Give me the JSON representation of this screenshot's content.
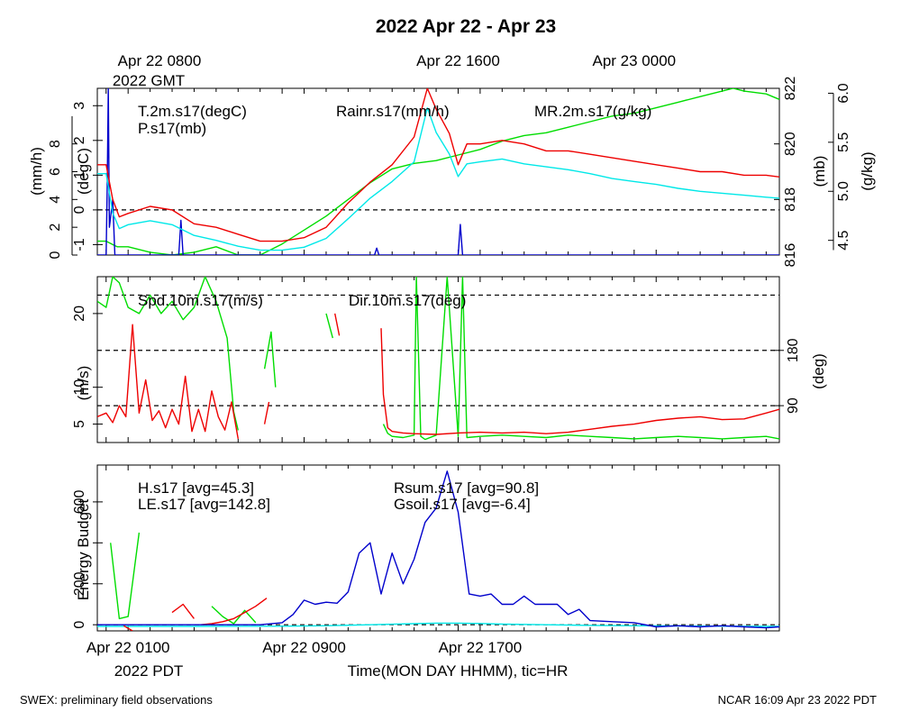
{
  "title": "2022 Apr 22 - Apr 23",
  "top_axis": {
    "ticks": [
      "Apr 22 0800",
      "Apr 22 1600",
      "Apr 23 0000"
    ],
    "year_label": "2022 GMT"
  },
  "bottom_axis": {
    "ticks": [
      "Apr 22 0100",
      "Apr 22 0900",
      "Apr 22 1700"
    ],
    "year_label": "2022 PDT",
    "label": "Time(MON DAY HHMM), tic=HR"
  },
  "footer": {
    "left": "SWEX: preliminary field observations",
    "right": "NCAR 16:09 Apr 23 2022 PDT"
  },
  "colors": {
    "red": "#ee0000",
    "green": "#00dd00",
    "blue": "#0000cc",
    "cyan": "#00e8e8"
  },
  "chart_data": [
    {
      "type": "line",
      "x_unit": "hours since Apr 22 0000 PDT",
      "xlim": [
        -0.4,
        30.6
      ],
      "left_axes": [
        {
          "label": "(degC)",
          "ticks": [
            -1,
            0,
            1,
            2,
            3
          ],
          "ylim": [
            -1.3,
            3.5
          ]
        },
        {
          "label": "(mm/h)",
          "ticks": [
            0,
            2,
            4,
            6,
            8
          ],
          "ylim": [
            0,
            12
          ]
        }
      ],
      "right_axes": [
        {
          "label": "(mb)",
          "ticks": [
            816,
            818,
            820,
            822
          ],
          "ylim": [
            816,
            822
          ]
        },
        {
          "label": "(g/kg)",
          "ticks": [
            4.5,
            5.0,
            5.5,
            6.0
          ],
          "ylim": [
            4.35,
            6.05
          ]
        }
      ],
      "reference_lines": [
        0
      ],
      "series": [
        {
          "name": "T.2m.s17(degC)",
          "color": "red",
          "axis": "degC",
          "x": [
            -0.4,
            0,
            0.3,
            0.6,
            1,
            2,
            3,
            4,
            5,
            6,
            7,
            8,
            9,
            10,
            11,
            12,
            13,
            14,
            14.6,
            15,
            15.6,
            16,
            16.4,
            17,
            18,
            19,
            20,
            21,
            22,
            23,
            24,
            25,
            26,
            27,
            28,
            29,
            30,
            30.6
          ],
          "y": [
            1.3,
            1.3,
            0.3,
            -0.2,
            -0.1,
            0.1,
            0.0,
            -0.4,
            -0.5,
            -0.7,
            -0.9,
            -0.9,
            -0.8,
            -0.5,
            0.2,
            0.8,
            1.3,
            2.1,
            3.5,
            2.9,
            2.2,
            1.3,
            1.9,
            1.9,
            2.0,
            1.9,
            1.7,
            1.7,
            1.6,
            1.5,
            1.4,
            1.3,
            1.2,
            1.1,
            1.1,
            1.0,
            1.0,
            0.95
          ]
        },
        {
          "name": "MR.2m.s17(g/kg)",
          "color": "cyan",
          "axis": "g/kg",
          "x": [
            -0.4,
            0,
            0.3,
            0.6,
            1,
            2,
            3,
            4,
            5,
            6,
            7,
            8,
            9,
            10,
            11,
            12,
            13,
            14,
            14.6,
            15,
            15.6,
            16,
            16.4,
            17,
            18,
            19,
            20,
            21,
            22,
            23,
            24,
            25,
            26,
            27,
            28,
            29,
            30,
            30.6
          ],
          "y": [
            5.18,
            5.18,
            4.78,
            4.62,
            4.66,
            4.7,
            4.66,
            4.55,
            4.5,
            4.44,
            4.4,
            4.4,
            4.43,
            4.52,
            4.72,
            4.93,
            5.1,
            5.3,
            5.85,
            5.6,
            5.38,
            5.15,
            5.28,
            5.3,
            5.33,
            5.28,
            5.25,
            5.22,
            5.18,
            5.13,
            5.1,
            5.07,
            5.03,
            5.0,
            4.98,
            4.96,
            4.94,
            4.93
          ]
        },
        {
          "name": "P.s17(mb)",
          "color": "green",
          "axis": "mb",
          "x": [
            -0.4,
            0,
            0.5,
            1,
            2,
            3,
            4,
            5,
            6,
            7,
            8,
            9,
            10,
            11,
            12,
            13,
            14,
            15,
            16,
            17,
            18,
            19,
            20,
            21,
            22,
            23,
            24,
            25,
            26,
            27,
            28,
            28.5,
            29,
            30,
            30.6
          ],
          "y": [
            816.5,
            816.5,
            816.3,
            816.3,
            816.1,
            816.0,
            816.1,
            816.3,
            816.0,
            815.9,
            816.4,
            816.9,
            817.4,
            818.0,
            818.6,
            819.1,
            819.3,
            819.4,
            819.6,
            819.8,
            820.1,
            820.3,
            820.4,
            820.6,
            820.8,
            821.0,
            821.1,
            821.3,
            821.5,
            821.7,
            821.9,
            822.0,
            821.9,
            821.8,
            821.6
          ]
        },
        {
          "name": "Rainr.s17(mm/h)",
          "color": "blue",
          "axis": "mm/h",
          "x": [
            -0.4,
            0,
            0.05,
            0.1,
            0.15,
            0.3,
            0.4,
            0.5,
            0.6,
            3.3,
            3.4,
            3.5,
            12.2,
            12.3,
            12.4,
            16.0,
            16.1,
            16.2,
            30.6
          ],
          "y": [
            0,
            0,
            5,
            12,
            2,
            4,
            0,
            0,
            0,
            0,
            2.5,
            0,
            0,
            0.5,
            0,
            0,
            2.2,
            0,
            0
          ]
        }
      ]
    },
    {
      "type": "line",
      "x_unit": "hours since Apr 22 0000 PDT",
      "xlim": [
        -0.4,
        30.6
      ],
      "left_axis": {
        "label": "(m/s)",
        "ticks": [
          5,
          10,
          20
        ],
        "ylim": [
          2.5,
          25
        ]
      },
      "right_axis": {
        "label": "(deg)",
        "ticks": [
          90,
          180
        ],
        "ylim": [
          30,
          300
        ]
      },
      "reference_lines_deg": [
        90,
        180,
        270
      ],
      "series": [
        {
          "name": "Spd.10m.s17(m/s)",
          "color": "red",
          "axis": "m/s",
          "segments": [
            {
              "x": [
                -0.4,
                0,
                0.3,
                0.6,
                0.9,
                1.2,
                1.5,
                1.8,
                2.1,
                2.4,
                2.7,
                3.0,
                3.3,
                3.6,
                3.9,
                4.2,
                4.5,
                4.8,
                5.1,
                5.4,
                5.7,
                6.0
              ],
              "y": [
                6,
                6.5,
                5.2,
                7.5,
                6.0,
                18.5,
                6.5,
                11,
                5.5,
                6.8,
                4.5,
                7,
                5,
                11.5,
                4,
                7,
                4,
                9.5,
                6,
                4.2,
                8,
                3
              ]
            },
            {
              "x": [
                7.2,
                7.4
              ],
              "y": [
                5,
                8
              ]
            },
            {
              "x": [
                10.4,
                10.6
              ],
              "y": [
                20,
                17
              ]
            },
            {
              "x": [
                12.5,
                12.6,
                12.8,
                13.0,
                13.5,
                14,
                15,
                16,
                17,
                18,
                19,
                20,
                21,
                22,
                23,
                24,
                25,
                26,
                27,
                28,
                29,
                30,
                30.6
              ],
              "y": [
                18,
                9,
                4.5,
                4.0,
                3.8,
                3.7,
                3.6,
                3.8,
                3.9,
                3.8,
                3.9,
                3.7,
                3.9,
                4.3,
                4.7,
                5.0,
                5.5,
                5.8,
                6.0,
                5.6,
                5.7,
                6.5,
                7.0
              ]
            }
          ]
        },
        {
          "name": "Dir.10m.s17(deg)",
          "color": "green",
          "axis": "deg",
          "segments": [
            {
              "x": [
                -0.4,
                0,
                0.3,
                0.6,
                1,
                1.5,
                2,
                2.5,
                3,
                3.5,
                4,
                4.5,
                5,
                5.5,
                5.8,
                6.0
              ],
              "y": [
                260,
                250,
                300,
                290,
                250,
                240,
                270,
                240,
                260,
                230,
                250,
                300,
                260,
                200,
                80,
                50
              ]
            },
            {
              "x": [
                7.2,
                7.5,
                7.7
              ],
              "y": [
                150,
                210,
                120
              ]
            },
            {
              "x": [
                10.0,
                10.3
              ],
              "y": [
                240,
                200
              ]
            },
            {
              "x": [
                12.6,
                12.8,
                13,
                13.5,
                14,
                14.1,
                14.3,
                14.5,
                15,
                15.5,
                16,
                16.2,
                16.4,
                17,
                18,
                19,
                20,
                21,
                22,
                23,
                24,
                25,
                26,
                27,
                28,
                29,
                30,
                30.6
              ],
              "y": [
                60,
                45,
                40,
                38,
                42,
                300,
                40,
                35,
                42,
                300,
                40,
                300,
                38,
                40,
                42,
                40,
                38,
                42,
                40,
                38,
                36,
                38,
                40,
                38,
                36,
                38,
                40,
                36
              ]
            }
          ]
        }
      ]
    },
    {
      "type": "line",
      "x_unit": "hours since Apr 22 0000 PDT",
      "xlim": [
        -0.4,
        30.6
      ],
      "y_axis": {
        "label": "Energy Budget",
        "ticks": [
          0,
          200,
          600
        ],
        "ylim": [
          -30,
          780
        ]
      },
      "reference_lines": [
        0
      ],
      "series": [
        {
          "name": "H.s17 [avg=45.3]",
          "color": "red",
          "segments": [
            {
              "x": [
                0.8,
                1.2
              ],
              "y": [
                -5,
                -30
              ]
            },
            {
              "x": [
                3,
                3.5,
                4
              ],
              "y": [
                60,
                100,
                30
              ]
            },
            {
              "x": [
                4.3,
                4.8,
                5.3,
                5.8,
                6.3,
                6.8,
                7.3
              ],
              "y": [
                0,
                5,
                15,
                30,
                60,
                90,
                130
              ]
            }
          ]
        },
        {
          "name": "LE.s17 [avg=142.8]",
          "color": "green",
          "segments": [
            {
              "x": [
                0.2,
                0.6,
                1.0,
                1.5
              ],
              "y": [
                400,
                30,
                40,
                450
              ]
            },
            {
              "x": [
                4.8,
                5.3,
                5.8,
                6.3,
                6.8
              ],
              "y": [
                90,
                40,
                5,
                70,
                10
              ]
            }
          ]
        },
        {
          "name": "Rsum.s17 [avg=90.8]",
          "color": "blue",
          "segments": [
            {
              "x": [
                -0.4,
                1,
                2,
                3,
                4,
                5,
                6,
                7,
                8,
                8.5,
                9,
                9.5,
                10,
                10.5,
                11,
                11.5,
                12,
                12.5,
                13,
                13.5,
                14,
                14.5,
                15,
                15.5,
                16,
                16.5,
                17,
                17.5,
                18,
                18.5,
                19,
                19.5,
                20,
                20.5,
                21,
                21.5,
                22,
                23,
                24,
                25,
                26,
                27,
                28,
                29,
                30,
                30.6
              ],
              "y": [
                0,
                0,
                0,
                0,
                0,
                0,
                0,
                0,
                10,
                50,
                120,
                100,
                110,
                105,
                160,
                350,
                400,
                150,
                350,
                200,
                320,
                500,
                570,
                750,
                550,
                150,
                140,
                150,
                100,
                100,
                140,
                100,
                100,
                100,
                50,
                75,
                20,
                15,
                10,
                -10,
                -5,
                -10,
                -5,
                -10,
                -15,
                -10
              ]
            }
          ]
        },
        {
          "name": "Gsoil.s17 [avg=-6.4]",
          "color": "cyan",
          "segments": [
            {
              "x": [
                -0.4,
                4,
                8,
                10,
                12,
                14,
                15,
                16,
                17,
                18,
                20,
                22,
                24,
                26,
                28,
                30,
                30.6
              ],
              "y": [
                -8,
                -8,
                -7,
                -5,
                0,
                5,
                8,
                8,
                6,
                3,
                0,
                -3,
                -5,
                -6,
                -7,
                -8,
                -8
              ]
            }
          ]
        }
      ]
    }
  ]
}
